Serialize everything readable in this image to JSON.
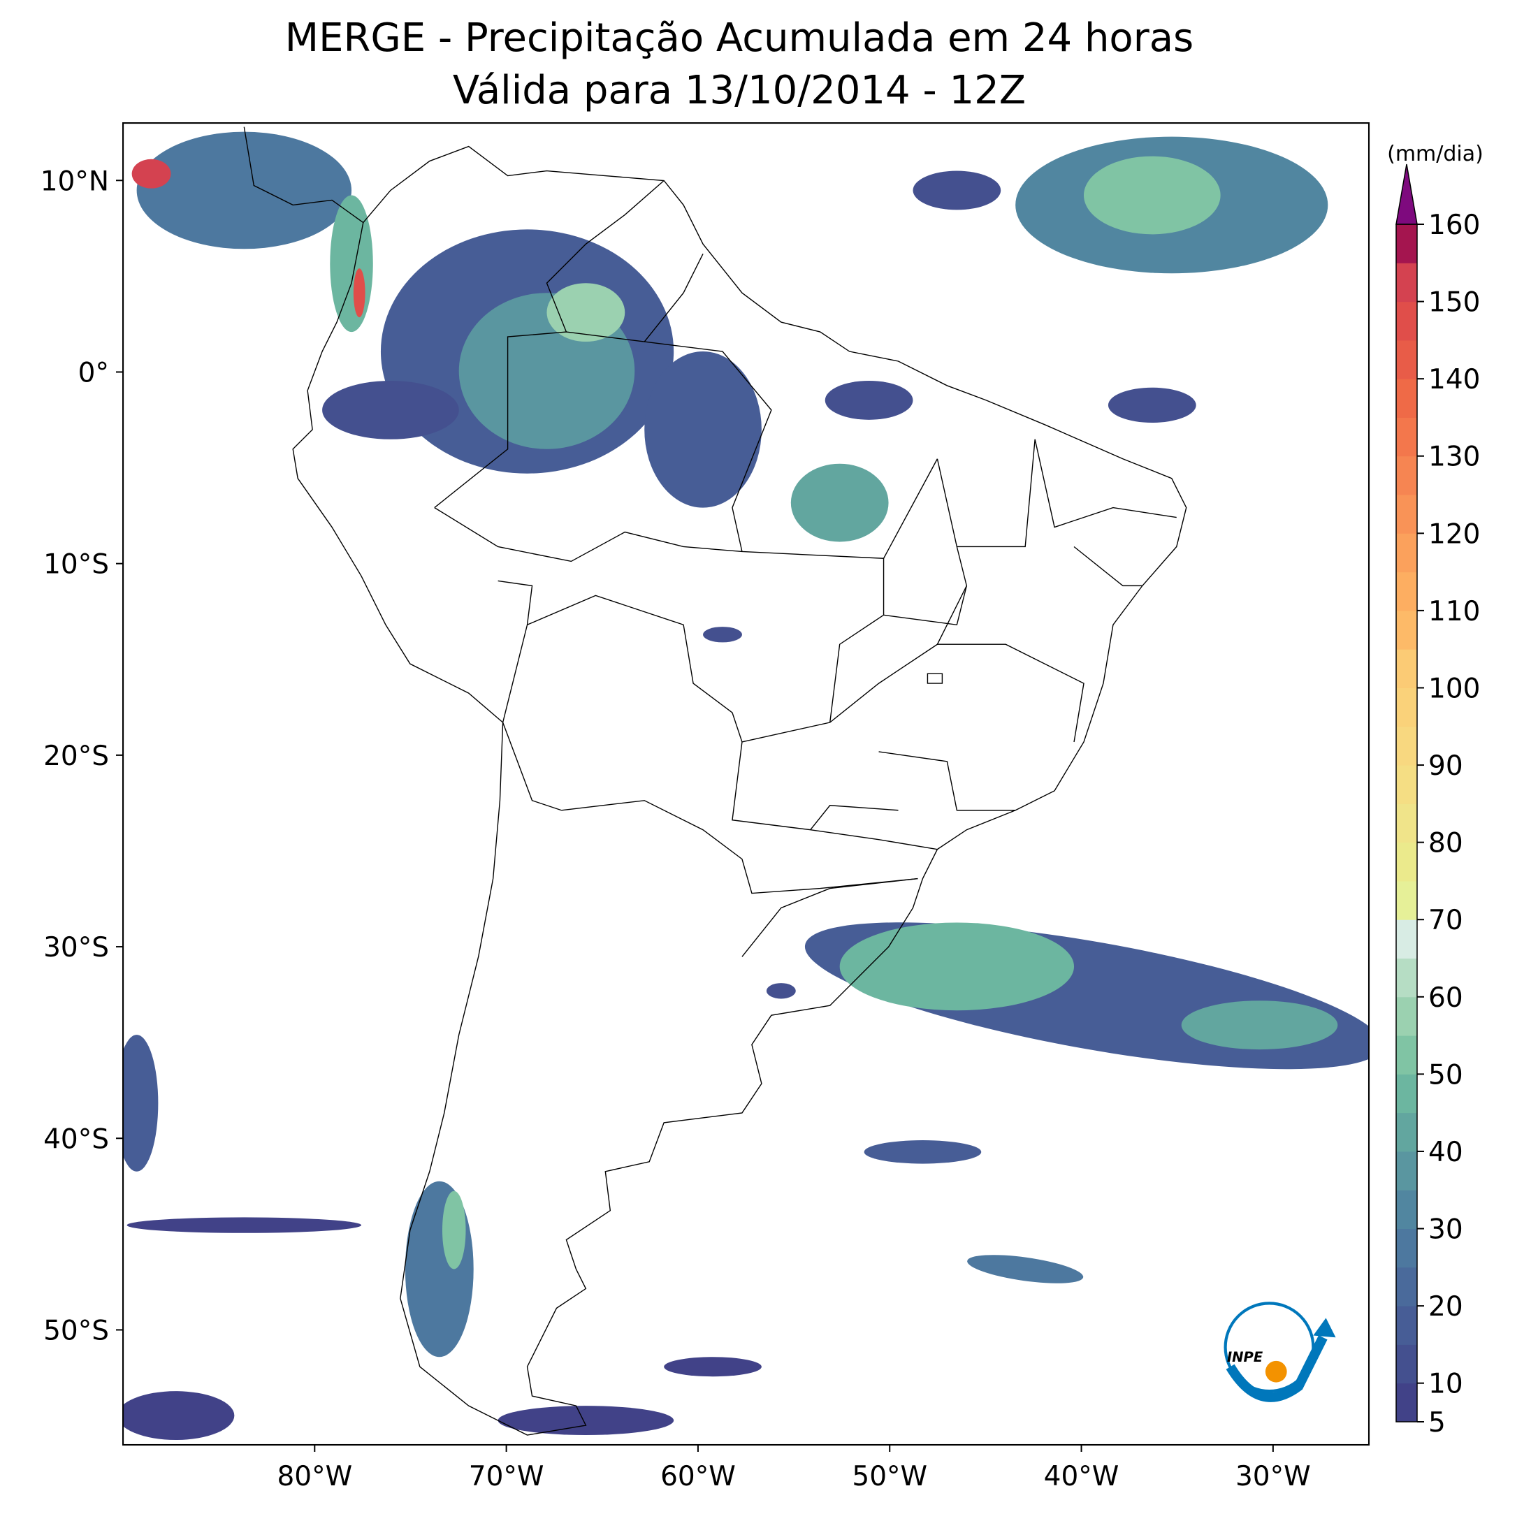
{
  "chart_data": {
    "type": "map",
    "title": "MERGE - Precipitação Acumulada em 24 horas",
    "subtitle": "Válida para 13/10/2014 - 12Z",
    "xlim": [
      -90,
      -25
    ],
    "ylim": [
      -56,
      13
    ],
    "xticks": [
      {
        "value": -80,
        "label": "80°W"
      },
      {
        "value": -70,
        "label": "70°W"
      },
      {
        "value": -60,
        "label": "60°W"
      },
      {
        "value": -50,
        "label": "50°W"
      },
      {
        "value": -40,
        "label": "40°W"
      },
      {
        "value": -30,
        "label": "30°W"
      }
    ],
    "yticks": [
      {
        "value": 10,
        "label": "10°N"
      },
      {
        "value": 0,
        "label": "0°"
      },
      {
        "value": -10,
        "label": "10°S"
      },
      {
        "value": -20,
        "label": "20°S"
      },
      {
        "value": -30,
        "label": "30°S"
      },
      {
        "value": -40,
        "label": "40°S"
      },
      {
        "value": -50,
        "label": "50°S"
      }
    ],
    "colorbar": {
      "label": "(mm/dia)",
      "lim": [
        5,
        160
      ],
      "ticks": [
        5,
        10,
        20,
        30,
        40,
        50,
        60,
        70,
        80,
        90,
        100,
        110,
        120,
        130,
        140,
        150,
        160
      ],
      "colors": [
        "#414288",
        "#44508f",
        "#475d96",
        "#4a6a9b",
        "#4d789f",
        "#5186a0",
        "#5a96a0",
        "#62a69f",
        "#6cb6a0",
        "#80c4a4",
        "#9bd1b0",
        "#b6ddc4",
        "#d8ece4",
        "#e6f098",
        "#ebea8c",
        "#f0e48a",
        "#f5de84",
        "#f8d880",
        "#fad27a",
        "#fbcb75",
        "#fdba68",
        "#fdae61",
        "#fba15c",
        "#f99357",
        "#f68552",
        "#f3774c",
        "#ef6a47",
        "#e85c48",
        "#e04e4a",
        "#d44250",
        "#a4154f"
      ],
      "extend_color": "#7e0a7e"
    },
    "logo": "INPE"
  }
}
